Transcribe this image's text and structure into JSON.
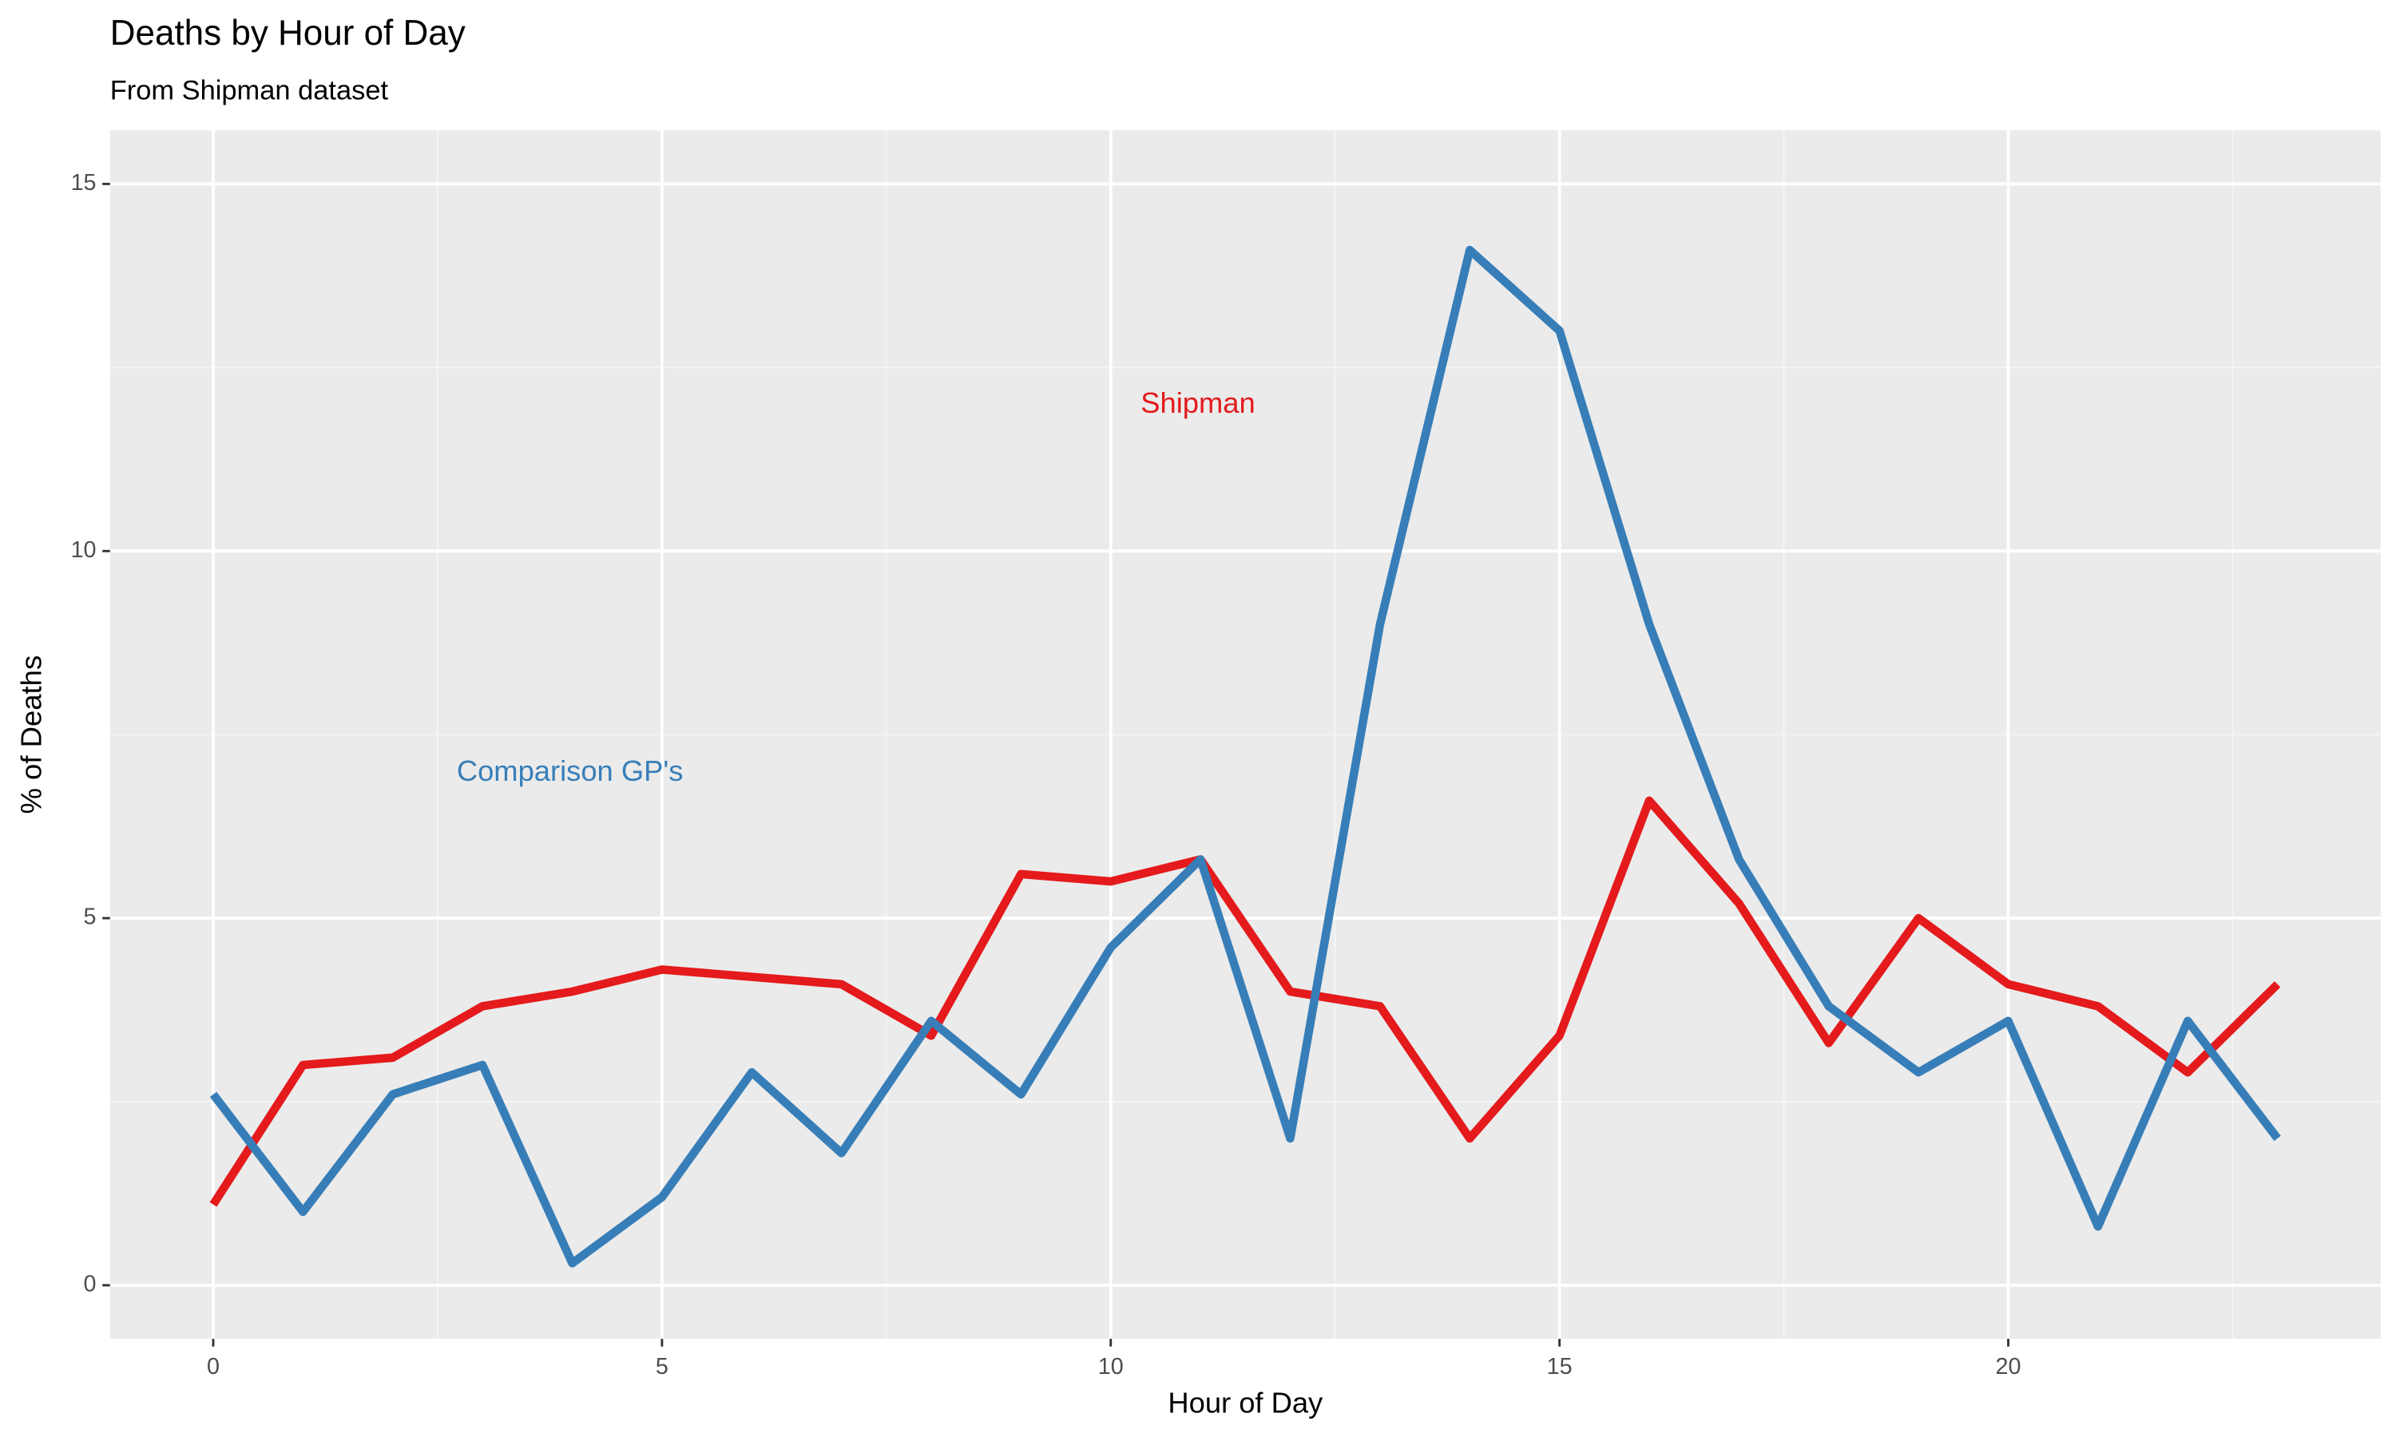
{
  "chart_data": {
    "type": "line",
    "title": "Deaths by Hour of Day",
    "subtitle": "From Shipman dataset",
    "x_label": "Hour of Day",
    "y_label": "% of Deaths",
    "x": [
      0,
      1,
      2,
      3,
      4,
      5,
      6,
      7,
      8,
      9,
      10,
      11,
      12,
      13,
      14,
      15,
      16,
      17,
      18,
      19,
      20,
      21,
      22,
      23
    ],
    "series": [
      {
        "name": "Shipman",
        "color": "#e41a1c",
        "values": [
          1.1,
          3.0,
          3.1,
          3.8,
          4.0,
          4.3,
          4.2,
          4.1,
          3.4,
          5.6,
          5.5,
          5.8,
          4.0,
          3.8,
          2.0,
          3.4,
          6.6,
          5.2,
          3.3,
          5.0,
          4.1,
          3.8,
          2.9,
          4.1
        ]
      },
      {
        "name": "Comparison GP's",
        "color": "#377eb8",
        "values": [
          2.6,
          1.0,
          2.6,
          3.0,
          0.3,
          1.2,
          2.9,
          1.8,
          3.6,
          2.6,
          4.6,
          5.8,
          2.0,
          9.0,
          14.1,
          13.0,
          9.0,
          5.8,
          3.8,
          2.9,
          3.6,
          0.8,
          3.6,
          2.0
        ]
      }
    ],
    "xlim": [
      -1.15,
      24.15
    ],
    "ylim": [
      -0.73,
      15.73
    ],
    "xticks": [
      0,
      5,
      10,
      15,
      20
    ],
    "yticks": [
      0,
      5,
      10,
      15
    ],
    "grid": true,
    "minor_grid": true
  }
}
